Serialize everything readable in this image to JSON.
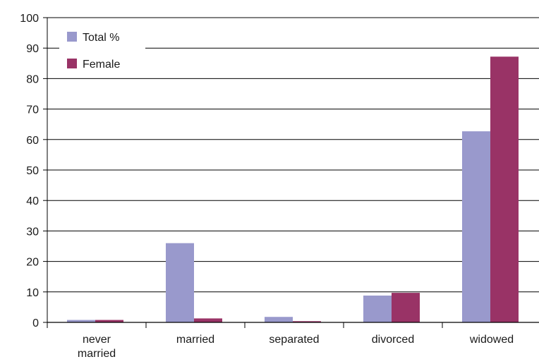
{
  "chart_data": {
    "type": "bar",
    "title": "",
    "xlabel": "",
    "ylabel": "",
    "categories": [
      [
        "never",
        "married"
      ],
      [
        "married"
      ],
      [
        "separated"
      ],
      [
        "divorced"
      ],
      [
        "widowed"
      ]
    ],
    "series": [
      {
        "name": "Total %",
        "color": "#9999cc",
        "values": [
          0.8,
          26,
          1.8,
          8.8,
          62.7
        ]
      },
      {
        "name": "Female",
        "color": "#993366",
        "values": [
          0.8,
          1.3,
          0.4,
          9.7,
          87.2
        ]
      }
    ],
    "ylim": [
      0,
      100
    ],
    "yticks": [
      0,
      10,
      20,
      30,
      40,
      50,
      60,
      70,
      80,
      90,
      100
    ],
    "grid": true,
    "legend_position": "top-left"
  }
}
